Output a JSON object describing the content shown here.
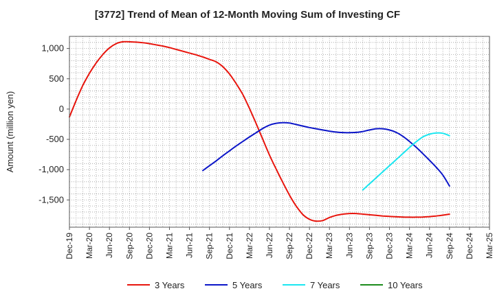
{
  "chart_data": {
    "type": "line",
    "title": "[3772]  Trend of Mean of 12-Month Moving Sum of Investing CF",
    "xlabel": "",
    "ylabel": "Amount (million yen)",
    "ylim": [
      -1950,
      1200
    ],
    "grid": true,
    "legend_placement": "bottom",
    "x_ticks": [
      "Dec-19",
      "Mar-20",
      "Jun-20",
      "Sep-20",
      "Dec-20",
      "Mar-21",
      "Jun-21",
      "Sep-21",
      "Dec-21",
      "Mar-22",
      "Jun-22",
      "Sep-22",
      "Dec-22",
      "Mar-23",
      "Jun-23",
      "Sep-23",
      "Dec-23",
      "Mar-24",
      "Jun-24",
      "Sep-24",
      "Dec-24",
      "Mar-25"
    ],
    "y_ticks": [
      1000,
      500,
      0,
      -500,
      -1000,
      -1500
    ],
    "y_tick_labels": [
      "1,000",
      "500",
      "0",
      "-500",
      "-1,000",
      "-1,500"
    ],
    "series": [
      {
        "name": "3 Years",
        "color": "#e8140c",
        "points": [
          [
            "Dec-19",
            -130
          ],
          [
            "Jan-20",
            140
          ],
          [
            "Feb-20",
            390
          ],
          [
            "Mar-20",
            590
          ],
          [
            "Apr-20",
            760
          ],
          [
            "May-20",
            900
          ],
          [
            "Jun-20",
            1010
          ],
          [
            "Jul-20",
            1080
          ],
          [
            "Aug-20",
            1110
          ],
          [
            "Sep-20",
            1110
          ],
          [
            "Oct-20",
            1105
          ],
          [
            "Nov-20",
            1095
          ],
          [
            "Dec-20",
            1080
          ],
          [
            "Jan-21",
            1060
          ],
          [
            "Feb-21",
            1040
          ],
          [
            "Mar-21",
            1015
          ],
          [
            "Apr-21",
            985
          ],
          [
            "May-21",
            955
          ],
          [
            "Jun-21",
            925
          ],
          [
            "Jul-21",
            895
          ],
          [
            "Aug-21",
            860
          ],
          [
            "Sep-21",
            820
          ],
          [
            "Oct-21",
            780
          ],
          [
            "Nov-21",
            700
          ],
          [
            "Dec-21",
            580
          ],
          [
            "Jan-22",
            420
          ],
          [
            "Feb-22",
            240
          ],
          [
            "Mar-22",
            10
          ],
          [
            "Apr-22",
            -240
          ],
          [
            "May-22",
            -500
          ],
          [
            "Jun-22",
            -760
          ],
          [
            "Jul-22",
            -990
          ],
          [
            "Aug-22",
            -1210
          ],
          [
            "Sep-22",
            -1420
          ],
          [
            "Oct-22",
            -1600
          ],
          [
            "Nov-22",
            -1740
          ],
          [
            "Dec-22",
            -1820
          ],
          [
            "Jan-23",
            -1850
          ],
          [
            "Feb-23",
            -1840
          ],
          [
            "Mar-23",
            -1790
          ],
          [
            "Apr-23",
            -1755
          ],
          [
            "May-23",
            -1735
          ],
          [
            "Jun-23",
            -1725
          ],
          [
            "Jul-23",
            -1725
          ],
          [
            "Aug-23",
            -1735
          ],
          [
            "Sep-23",
            -1745
          ],
          [
            "Oct-23",
            -1755
          ],
          [
            "Nov-23",
            -1765
          ],
          [
            "Dec-23",
            -1772
          ],
          [
            "Jan-24",
            -1778
          ],
          [
            "Feb-24",
            -1782
          ],
          [
            "Mar-24",
            -1785
          ],
          [
            "Apr-24",
            -1785
          ],
          [
            "May-24",
            -1782
          ],
          [
            "Jun-24",
            -1775
          ],
          [
            "Jul-24",
            -1765
          ],
          [
            "Aug-24",
            -1752
          ],
          [
            "Sep-24",
            -1735
          ]
        ]
      },
      {
        "name": "5 Years",
        "color": "#0a14c8",
        "points": [
          [
            "Aug-21",
            -1015
          ],
          [
            "Sep-21",
            -935
          ],
          [
            "Oct-21",
            -855
          ],
          [
            "Nov-21",
            -770
          ],
          [
            "Dec-21",
            -690
          ],
          [
            "Jan-22",
            -610
          ],
          [
            "Feb-22",
            -535
          ],
          [
            "Mar-22",
            -460
          ],
          [
            "Apr-22",
            -390
          ],
          [
            "May-22",
            -320
          ],
          [
            "Jun-22",
            -265
          ],
          [
            "Jul-22",
            -235
          ],
          [
            "Aug-22",
            -225
          ],
          [
            "Sep-22",
            -230
          ],
          [
            "Oct-22",
            -255
          ],
          [
            "Nov-22",
            -280
          ],
          [
            "Dec-22",
            -305
          ],
          [
            "Jan-23",
            -325
          ],
          [
            "Feb-23",
            -345
          ],
          [
            "Mar-23",
            -365
          ],
          [
            "Apr-23",
            -380
          ],
          [
            "May-23",
            -388
          ],
          [
            "Jun-23",
            -390
          ],
          [
            "Jul-23",
            -385
          ],
          [
            "Aug-23",
            -370
          ],
          [
            "Sep-23",
            -345
          ],
          [
            "Oct-23",
            -325
          ],
          [
            "Nov-23",
            -325
          ],
          [
            "Dec-23",
            -345
          ],
          [
            "Jan-24",
            -385
          ],
          [
            "Feb-24",
            -450
          ],
          [
            "Mar-24",
            -535
          ],
          [
            "Apr-24",
            -630
          ],
          [
            "May-24",
            -735
          ],
          [
            "Jun-24",
            -845
          ],
          [
            "Jul-24",
            -960
          ],
          [
            "Aug-24",
            -1090
          ],
          [
            "Sep-24",
            -1270
          ]
        ]
      },
      {
        "name": "7 Years",
        "color": "#19e6f0",
        "points": [
          [
            "Aug-23",
            -1335
          ],
          [
            "Sep-23",
            -1235
          ],
          [
            "Oct-23",
            -1135
          ],
          [
            "Nov-23",
            -1035
          ],
          [
            "Dec-23",
            -935
          ],
          [
            "Jan-24",
            -835
          ],
          [
            "Feb-24",
            -735
          ],
          [
            "Mar-24",
            -635
          ],
          [
            "Apr-24",
            -540
          ],
          [
            "May-24",
            -460
          ],
          [
            "Jun-24",
            -415
          ],
          [
            "Jul-24",
            -395
          ],
          [
            "Aug-24",
            -400
          ],
          [
            "Sep-24",
            -440
          ]
        ]
      },
      {
        "name": "10 Years",
        "color": "#1a8a1a",
        "points": []
      }
    ]
  }
}
